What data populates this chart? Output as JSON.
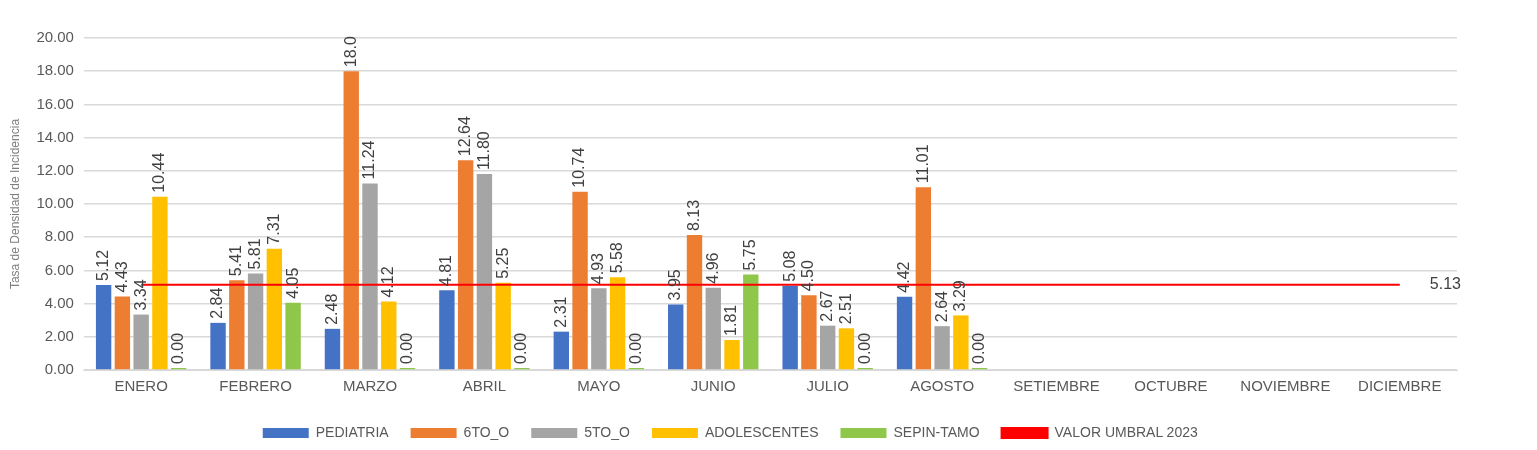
{
  "chart_data": {
    "type": "bar",
    "ylabel": "Tasa de Densidad de Incidencia",
    "categories": [
      "ENERO",
      "FEBRERO",
      "MARZO",
      "ABRIL",
      "MAYO",
      "JUNIO",
      "JULIO",
      "AGOSTO",
      "SETIEMBRE",
      "OCTUBRE",
      "NOVIEMBRE",
      "DICIEMBRE"
    ],
    "series": [
      {
        "name": "PEDIATRIA",
        "color": "#4472c4",
        "values": [
          5.12,
          2.84,
          2.48,
          4.81,
          2.31,
          3.95,
          5.08,
          4.42,
          null,
          null,
          null,
          null
        ],
        "value_labels": [
          "5.12",
          "2.84",
          "2.48",
          "4.81",
          "2.31",
          "3.95",
          "5.08",
          "4.42",
          null,
          null,
          null,
          null
        ]
      },
      {
        "name": "6TO_O",
        "color": "#ed7d31",
        "values": [
          4.43,
          5.41,
          18.0,
          12.64,
          10.74,
          8.13,
          4.5,
          11.01,
          null,
          null,
          null,
          null
        ],
        "value_labels": [
          "4.43",
          "5.41",
          "18.0",
          "12.64",
          "10.74",
          "8.13",
          "4.50",
          "11.01",
          null,
          null,
          null,
          null
        ]
      },
      {
        "name": "5TO_O",
        "color": "#a5a5a5",
        "values": [
          3.34,
          5.81,
          11.24,
          11.8,
          4.93,
          4.96,
          2.67,
          2.64,
          null,
          null,
          null,
          null
        ],
        "value_labels": [
          "3.34",
          "5.81",
          "11.24",
          "11.80",
          "4.93",
          "4.96",
          "2.67",
          "2.64",
          null,
          null,
          null,
          null
        ]
      },
      {
        "name": "ADOLESCENTES",
        "color": "#ffc000",
        "values": [
          10.44,
          7.31,
          4.12,
          5.25,
          5.58,
          1.81,
          2.51,
          3.29,
          null,
          null,
          null,
          null
        ],
        "value_labels": [
          "10.44",
          "7.31",
          "4.12",
          "5.25",
          "5.58",
          "1.81",
          "2.51",
          "3.29",
          null,
          null,
          null,
          null
        ]
      },
      {
        "name": "SEPIN-TAMO",
        "color": "#8fc74a",
        "values": [
          0.0,
          4.05,
          0.0,
          0.0,
          0.0,
          5.75,
          0.0,
          0.0,
          null,
          null,
          null,
          null
        ],
        "value_labels": [
          "0.00",
          "4.05",
          "0.00",
          "0.00",
          "0.00",
          "5.75",
          "0.00",
          "0.00",
          null,
          null,
          null,
          null
        ]
      },
      {
        "name": "VALOR UMBRAL 2023",
        "type": "line",
        "color": "#ff0000",
        "values": [
          5.13,
          5.13,
          5.13,
          5.13,
          5.13,
          5.13,
          5.13,
          5.13,
          5.13,
          5.13,
          5.13,
          5.13
        ],
        "value_labels": [
          null,
          null,
          null,
          null,
          null,
          null,
          null,
          null,
          null,
          null,
          null,
          "5.13"
        ]
      }
    ],
    "ylim": [
      0,
      20
    ],
    "yticks": [
      {
        "value": 0,
        "label": "0.00"
      },
      {
        "value": 2,
        "label": "2.00"
      },
      {
        "value": 4,
        "label": "4.00"
      },
      {
        "value": 6,
        "label": "6.00"
      },
      {
        "value": 8,
        "label": "8.00"
      },
      {
        "value": 10,
        "label": "10.00"
      },
      {
        "value": 12,
        "label": "12.00"
      },
      {
        "value": 14,
        "label": "14.00"
      },
      {
        "value": 16,
        "label": "16.00"
      },
      {
        "value": 18,
        "label": "18.00"
      },
      {
        "value": 20,
        "label": "20.00"
      }
    ],
    "grid": "y",
    "legend": "bottom",
    "marker": "none"
  }
}
